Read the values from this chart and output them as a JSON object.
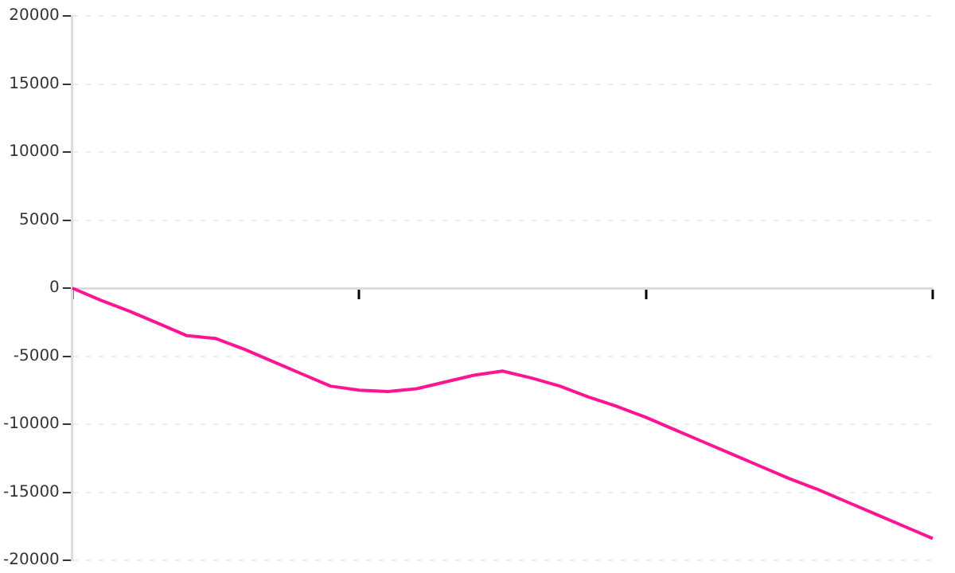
{
  "chart_data": {
    "type": "line",
    "categories": [
      null,
      null,
      null,
      null,
      null,
      null,
      null,
      null,
      null,
      null,
      null,
      null,
      null,
      null,
      null,
      null,
      null,
      null,
      null,
      null,
      null,
      null,
      null,
      null,
      null,
      null,
      null,
      null,
      null,
      null,
      null
    ],
    "values": [
      0,
      -900,
      -1700,
      -2600,
      -3500,
      -3700,
      -4500,
      -5400,
      -6300,
      -7200,
      -7500,
      -7600,
      -7400,
      -6900,
      -6400,
      -6100,
      -6600,
      -7200,
      -8000,
      -8700,
      -9500,
      -10400,
      -11300,
      -12200,
      -13100,
      -14000,
      -14800,
      -15700,
      -16600,
      -17500,
      -18400
    ],
    "color": "#ff1493",
    "ylim": [
      -20000,
      20000
    ],
    "yticks": [
      -20000,
      -15000,
      -10000,
      -5000,
      0,
      5000,
      10000,
      15000,
      20000
    ],
    "grid": "y",
    "tick_labels": "y",
    "marker": "none",
    "line_style": "solid"
  }
}
